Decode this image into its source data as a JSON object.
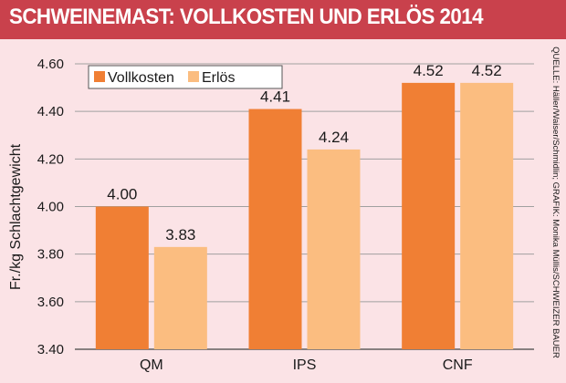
{
  "title": "SCHWEINEMAST: VOLLKOSTEN UND ERLÖS 2014",
  "source": "QUELLE: Häller/Waiser/Schmidlin; GRAFIK: Monika Müllis/SCHWEIZER BAUER",
  "colors": {
    "header": "#c9414c",
    "background": "#fbe3e6",
    "vollkosten": "#f07f34",
    "erloes": "#fbbd80",
    "grid": "#a0a0a0"
  },
  "chart_data": {
    "type": "bar",
    "title": "SCHWEINEMAST: VOLLKOSTEN UND ERLÖS 2014",
    "xlabel": "",
    "ylabel": "Fr./kg Schlachtgewicht",
    "ylim": [
      3.4,
      4.6
    ],
    "yticks": [
      "3.40",
      "3.60",
      "3.80",
      "4.00",
      "4.20",
      "4.40",
      "4.60"
    ],
    "grid": true,
    "legend_position": "top-left",
    "categories": [
      "QM",
      "IPS",
      "CNF"
    ],
    "series": [
      {
        "name": "Vollkosten",
        "values": [
          4.0,
          4.41,
          4.52
        ],
        "labels": [
          "4.00",
          "4.41",
          "4.52"
        ]
      },
      {
        "name": "Erlös",
        "values": [
          3.83,
          4.24,
          4.52
        ],
        "labels": [
          "3.83",
          "4.24",
          "4.52"
        ]
      }
    ]
  }
}
